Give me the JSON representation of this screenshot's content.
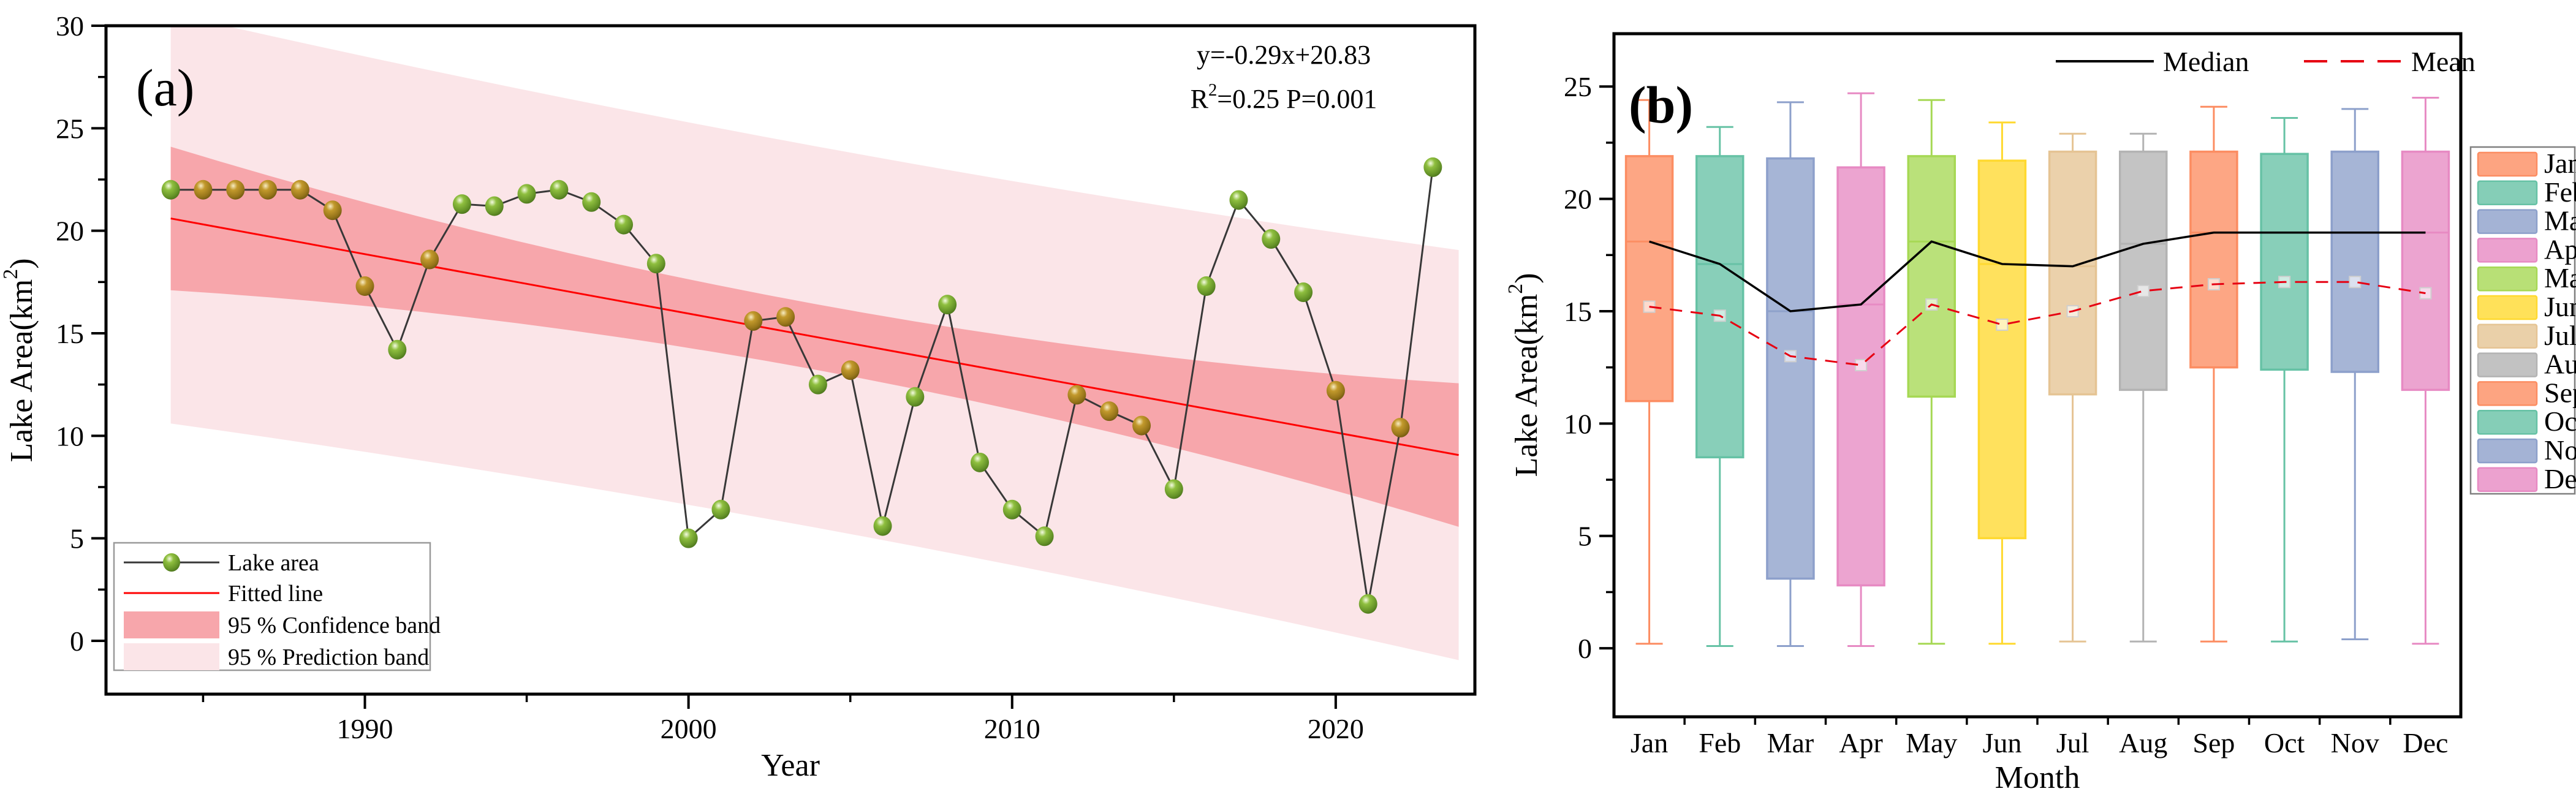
{
  "panel_a": {
    "label": "(a)",
    "equation": "y=-0.29x+20.83",
    "stats_r": "R",
    "stats_r_sup": "2",
    "stats_rest": "=0.25 P=0.001",
    "xlabel": "Year",
    "ylabel_prefix": "Lake Area(km",
    "ylabel_sup": "2",
    "ylabel_suffix": ")",
    "legend_lake_area": "Lake area",
    "legend_fitted": "Fitted line",
    "legend_confidence": "95 % Confidence band",
    "legend_prediction": "95 % Prediction band"
  },
  "panel_b": {
    "label": "(b)",
    "xlabel": "Month",
    "ylabel_prefix": "Lake Area(km",
    "ylabel_sup": "2",
    "ylabel_suffix": ")",
    "legend_median": "Median",
    "legend_mean": "Mean"
  },
  "chart_data": [
    {
      "type": "line",
      "title": "(a)",
      "xlabel": "Year",
      "ylabel": "Lake Area(km2)",
      "equation": "y=-0.29x+20.83",
      "stats": "R2=0.25 P=0.001",
      "xlim": [
        1982,
        2024.3
      ],
      "ylim": [
        -2.6,
        30
      ],
      "x_ticks": [
        1990,
        2000,
        2010,
        2020
      ],
      "x_minor_ticks": [
        1985,
        1995,
        2005,
        2015
      ],
      "y_ticks": [
        0,
        5,
        10,
        15,
        20,
        25,
        30
      ],
      "y_minor_ticks": [
        2.5,
        7.5,
        12.5,
        17.5,
        22.5,
        27.5
      ],
      "grid": false,
      "legend": [
        "Lake area",
        "Fitted line",
        "95 % Confidence band",
        "95 % Prediction band"
      ],
      "years": [
        1984,
        1985,
        1986,
        1987,
        1988,
        1989,
        1990,
        1991,
        1992,
        1993,
        1994,
        1995,
        1996,
        1997,
        1998,
        1999,
        2000,
        2001,
        2002,
        2003,
        2004,
        2005,
        2006,
        2007,
        2008,
        2009,
        2010,
        2011,
        2012,
        2013,
        2014,
        2015,
        2016,
        2017,
        2018,
        2019,
        2020,
        2021,
        2022,
        2023
      ],
      "values": [
        22.0,
        22.0,
        22.0,
        22.0,
        22.0,
        21.0,
        17.3,
        14.2,
        18.6,
        21.3,
        21.2,
        21.8,
        22.0,
        21.4,
        20.3,
        18.4,
        5.0,
        6.4,
        15.6,
        15.8,
        12.5,
        13.2,
        5.6,
        11.9,
        16.4,
        8.7,
        6.4,
        5.1,
        12.0,
        11.2,
        10.5,
        7.4,
        17.3,
        21.5,
        19.6,
        17.0,
        12.2,
        1.8,
        10.4,
        23.1
      ],
      "marker_colors": [
        "green",
        "olive",
        "olive",
        "olive",
        "olive",
        "olive",
        "olive",
        "green",
        "olive",
        "green",
        "green",
        "green",
        "green",
        "green",
        "green",
        "green",
        "green",
        "green",
        "olive",
        "olive",
        "green",
        "olive",
        "green",
        "green",
        "green",
        "green",
        "green",
        "green",
        "olive",
        "olive",
        "olive",
        "green",
        "green",
        "green",
        "green",
        "green",
        "olive",
        "green",
        "olive",
        "green"
      ],
      "fit": {
        "start_year": 1984,
        "end_year": 2023.8,
        "start_value": 20.6,
        "end_value": 9.06
      },
      "confidence_band": {
        "half_width_end": 3.5,
        "half_width_mid": 1.6
      },
      "prediction_band": {
        "half_width_end": 10.0,
        "half_width_mid": 9.3
      },
      "colors": {
        "marker_green": "#6fa32f",
        "marker_olive": "#a67b1e",
        "series_line": "#383838",
        "fit_line": "#ff0000",
        "confidence_fill": "#f7a6ab",
        "prediction_fill": "#fbe5e8"
      }
    },
    {
      "type": "box",
      "title": "(b)",
      "xlabel": "Month",
      "ylabel": "Lake Area(km2)",
      "ylim": [
        -3.05,
        27.35
      ],
      "y_ticks": [
        0,
        5,
        10,
        15,
        20,
        25
      ],
      "y_minor_ticks": [
        2.5,
        7.5,
        12.5,
        17.5,
        22.5
      ],
      "grid": false,
      "categories": [
        "Jan",
        "Feb",
        "Mar",
        "Apr",
        "May",
        "Jun",
        "Jul",
        "Aug",
        "Sep",
        "Oct",
        "Nov",
        "Dec"
      ],
      "series_legend": [
        "Median",
        "Mean"
      ],
      "box_colors": [
        "#FC8D62",
        "#66C2A5",
        "#8DA0CB",
        "#E78AC3",
        "#A6D854",
        "#FFD92F",
        "#E5C494",
        "#B3B3B3",
        "#FC8D62",
        "#66C2A5",
        "#8DA0CB",
        "#E78AC3"
      ],
      "boxes": [
        {
          "month": "Jan",
          "whisker_low": 0.2,
          "q1": 11.0,
          "median": 18.1,
          "q3": 21.9,
          "whisker_high": 24.4,
          "mean": 15.2
        },
        {
          "month": "Feb",
          "whisker_low": 0.1,
          "q1": 8.5,
          "median": 17.1,
          "q3": 21.9,
          "whisker_high": 23.2,
          "mean": 14.8
        },
        {
          "month": "Mar",
          "whisker_low": 0.1,
          "q1": 3.1,
          "median": 15.0,
          "q3": 21.8,
          "whisker_high": 24.3,
          "mean": 13.0
        },
        {
          "month": "Apr",
          "whisker_low": 0.1,
          "q1": 2.8,
          "median": 15.3,
          "q3": 21.4,
          "whisker_high": 24.7,
          "mean": 12.6
        },
        {
          "month": "May",
          "whisker_low": 0.2,
          "q1": 11.2,
          "median": 18.1,
          "q3": 21.9,
          "whisker_high": 24.4,
          "mean": 15.3
        },
        {
          "month": "Jun",
          "whisker_low": 0.2,
          "q1": 4.9,
          "median": 17.1,
          "q3": 21.7,
          "whisker_high": 23.4,
          "mean": 14.4
        },
        {
          "month": "Jul",
          "whisker_low": 0.3,
          "q1": 11.3,
          "median": 17.0,
          "q3": 22.1,
          "whisker_high": 22.9,
          "mean": 15.0
        },
        {
          "month": "Aug",
          "whisker_low": 0.3,
          "q1": 11.5,
          "median": 18.0,
          "q3": 22.1,
          "whisker_high": 22.9,
          "mean": 15.9
        },
        {
          "month": "Sep",
          "whisker_low": 0.3,
          "q1": 12.5,
          "median": 18.5,
          "q3": 22.1,
          "whisker_high": 24.1,
          "mean": 16.2
        },
        {
          "month": "Oct",
          "whisker_low": 0.3,
          "q1": 12.4,
          "median": 18.5,
          "q3": 22.0,
          "whisker_high": 23.6,
          "mean": 16.3
        },
        {
          "month": "Nov",
          "whisker_low": 0.4,
          "q1": 12.3,
          "median": 18.5,
          "q3": 22.1,
          "whisker_high": 24.0,
          "mean": 16.3
        },
        {
          "month": "Dec",
          "whisker_low": 0.2,
          "q1": 11.5,
          "median": 18.5,
          "q3": 22.1,
          "whisker_high": 24.5,
          "mean": 15.8
        }
      ],
      "median_line_color": "#000000",
      "mean_line_color": "#e60012"
    }
  ]
}
